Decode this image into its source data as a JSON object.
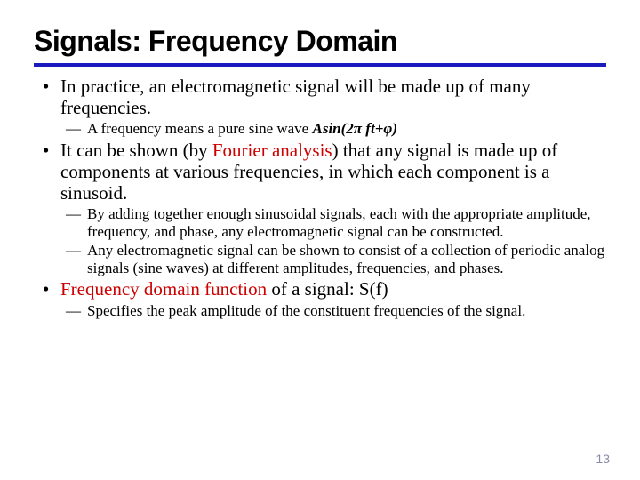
{
  "title": "Signals: Frequency Domain",
  "bullets": {
    "b1": {
      "text": "In practice, an electromagnetic signal will be made up of many frequencies.",
      "sub1_prefix": "A frequency means a pure sine wave ",
      "sub1_formula": "Asin(2π ft+φ)"
    },
    "b2": {
      "prefix": "It can be shown (by ",
      "red": "Fourier analysis",
      "suffix": ") that any signal is made up of components at various frequencies, in which each component is a sinusoid.",
      "sub1": "By adding together enough sinusoidal signals, each with the appropriate amplitude, frequency, and phase, any electromagnetic signal can be constructed.",
      "sub2": "Any electromagnetic signal can be shown to consist of a collection of periodic analog signals (sine waves) at different amplitudes, frequencies, and phases."
    },
    "b3": {
      "red": "Frequency domain function",
      "suffix": " of a signal: S(f)",
      "sub1": "Specifies the peak amplitude of the constituent frequencies of the signal."
    }
  },
  "page_number": "13",
  "colors": {
    "underline": "#1a1abf",
    "red_text": "#cc0000",
    "page_num": "#8b8ba8"
  }
}
